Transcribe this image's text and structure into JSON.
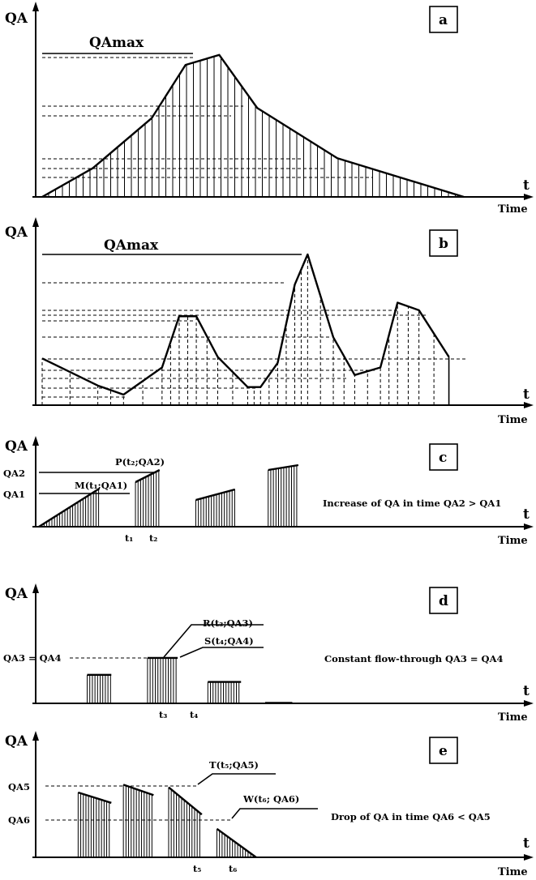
{
  "panels": [
    {
      "letter": "a",
      "ylabel": "QA",
      "xlabel_t": "t",
      "xlabel_time": "Time",
      "max_label": "QAmax",
      "kind": "continuous",
      "curve": [
        [
          0,
          0
        ],
        [
          12,
          20
        ],
        [
          26,
          55
        ],
        [
          34,
          92
        ],
        [
          42,
          99
        ],
        [
          51,
          62
        ],
        [
          70,
          27
        ],
        [
          100,
          0
        ]
      ]
    },
    {
      "letter": "b",
      "ylabel": "QA",
      "xlabel_t": "t",
      "xlabel_time": "Time",
      "max_label": "QAmax",
      "kind": "continuous",
      "curve": [
        [
          0,
          31
        ],
        [
          13,
          13
        ],
        [
          19,
          7
        ],
        [
          28,
          25
        ],
        [
          32,
          59
        ],
        [
          36,
          59
        ],
        [
          41,
          32
        ],
        [
          48,
          12
        ],
        [
          51,
          12
        ],
        [
          55,
          28
        ],
        [
          59,
          80
        ],
        [
          62,
          100
        ],
        [
          68,
          45
        ],
        [
          73,
          20
        ],
        [
          79,
          25
        ],
        [
          83,
          68
        ],
        [
          88,
          63
        ],
        [
          95,
          32
        ]
      ]
    },
    {
      "letter": "c",
      "ylabel": "QA",
      "xlabel_t": "t",
      "xlabel_time": "Time",
      "kind": "segments",
      "ticks": [
        "QA2",
        "QA1"
      ],
      "points": [
        "P(t₂;QA2)",
        "M(t₁;QA1)"
      ],
      "times": [
        "t₁",
        "t₂"
      ],
      "note": "Increase of QA in time QA2 > QA1",
      "segments": [
        [
          0,
          0,
          20,
          47
        ],
        [
          32,
          55,
          40,
          70
        ],
        [
          52,
          33,
          65,
          46
        ],
        [
          76,
          70,
          86,
          76
        ]
      ]
    },
    {
      "letter": "d",
      "ylabel": "QA",
      "xlabel_t": "t",
      "xlabel_time": "Time",
      "kind": "segments",
      "ticks": [
        "QA3 = QA4"
      ],
      "points": [
        "R(t₃;QA3)",
        "S(t₄;QA4)"
      ],
      "times": [
        "t₃",
        "t₄"
      ],
      "note": "Constant flow-through QA3 = QA4",
      "segments": [
        [
          16,
          32,
          24,
          32
        ],
        [
          36,
          51,
          46,
          51
        ],
        [
          56,
          24,
          67,
          24
        ],
        [
          75,
          0,
          84,
          0
        ]
      ]
    },
    {
      "letter": "e",
      "ylabel": "QA",
      "xlabel_t": "t",
      "xlabel_time": "Time",
      "kind": "segments",
      "ticks": [
        "QA5",
        "QA6"
      ],
      "points": [
        "T(t₅;QA5)",
        "W(t₆; QA6)"
      ],
      "times": [
        "t₅",
        "t₆"
      ],
      "note": "Drop of QA in time QA6 < QA5",
      "segments": [
        [
          13,
          50,
          24,
          42
        ],
        [
          28,
          56,
          38,
          48
        ],
        [
          43,
          54,
          54,
          33
        ],
        [
          59,
          22,
          72,
          0
        ]
      ]
    }
  ]
}
